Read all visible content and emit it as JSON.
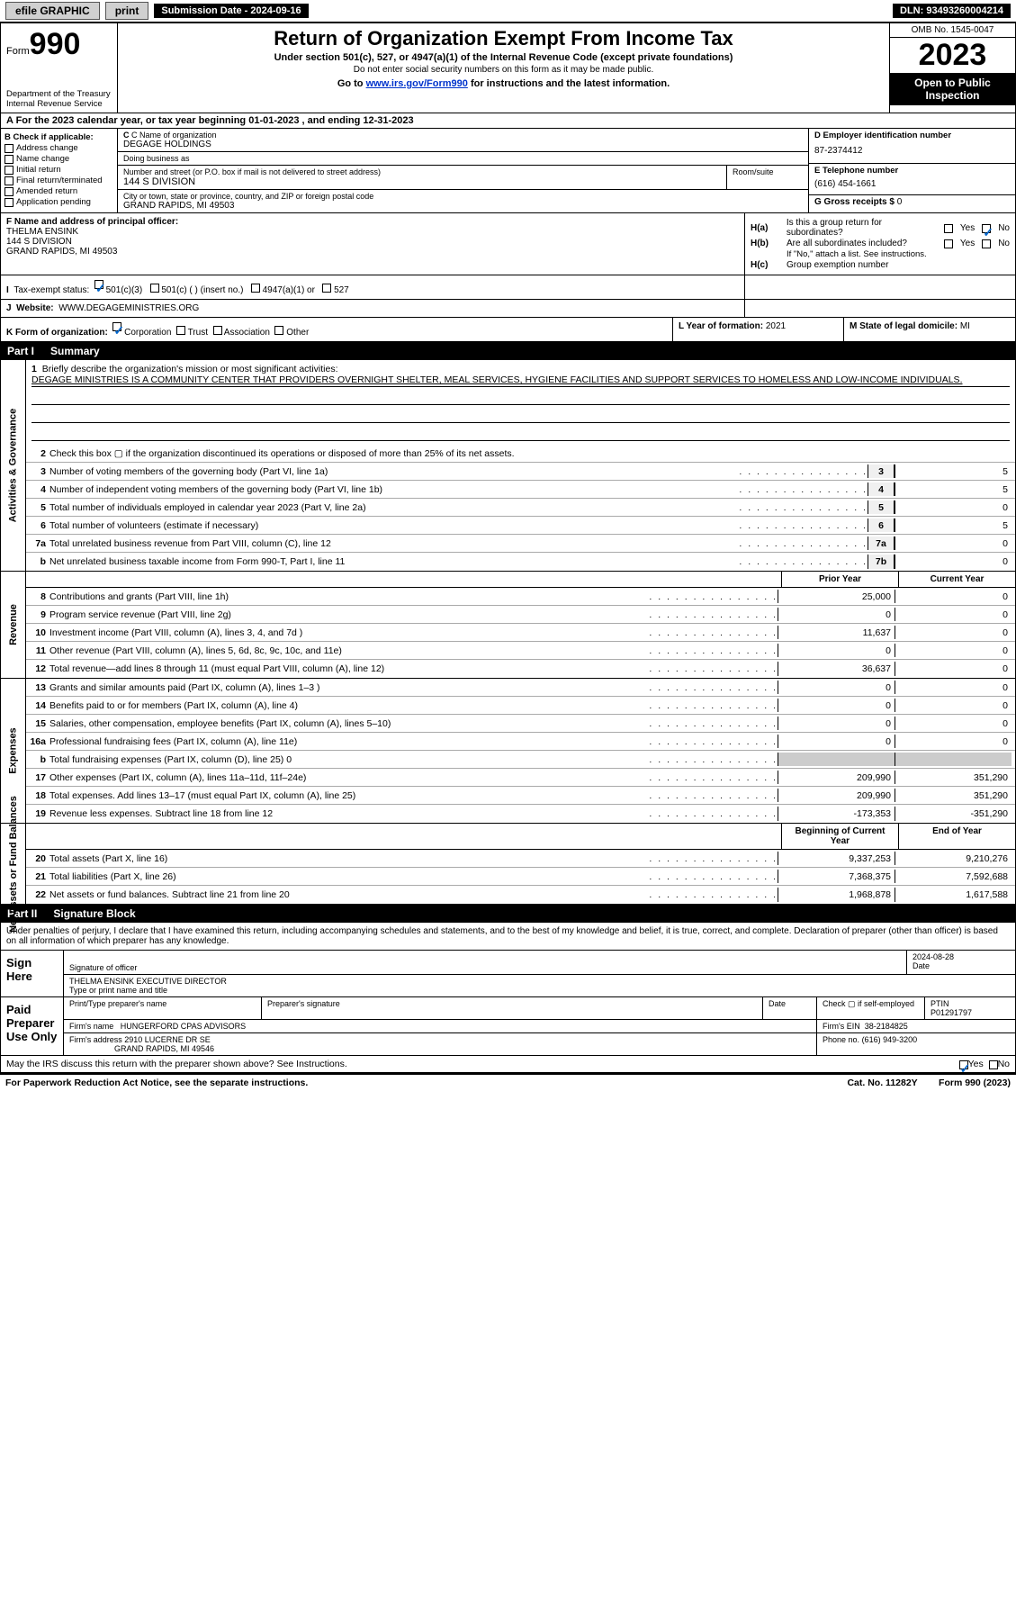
{
  "topbar": {
    "efile": "efile GRAPHIC",
    "print": "print",
    "submission_label": "Submission Date",
    "submission_date": "2024-09-16",
    "dln_label": "DLN:",
    "dln": "93493260004214"
  },
  "header": {
    "form_word": "Form",
    "form_num": "990",
    "dept": "Department of the Treasury Internal Revenue Service",
    "title": "Return of Organization Exempt From Income Tax",
    "sub": "Under section 501(c), 527, or 4947(a)(1) of the Internal Revenue Code (except private foundations)",
    "sub2": "Do not enter social security numbers on this form as it may be made public.",
    "goto_pre": "Go to ",
    "goto_link": "www.irs.gov/Form990",
    "goto_post": " for instructions and the latest information.",
    "omb": "OMB No. 1545-0047",
    "year": "2023",
    "open": "Open to Public Inspection"
  },
  "period": {
    "text_a": "A For the 2023 calendar year, or tax year beginning ",
    "begin": "01-01-2023",
    "text_b": " , and ending ",
    "end": "12-31-2023"
  },
  "colB": {
    "hdr": "B Check if applicable:",
    "items": [
      "Address change",
      "Name change",
      "Initial return",
      "Final return/terminated",
      "Amended return",
      "Application pending"
    ]
  },
  "colC": {
    "name_lbl": "C Name of organization",
    "name": "DEGAGE HOLDINGS",
    "dba_lbl": "Doing business as",
    "dba": "",
    "street_lbl": "Number and street (or P.O. box if mail is not delivered to street address)",
    "street": "144 S DIVISION",
    "room_lbl": "Room/suite",
    "city_lbl": "City or town, state or province, country, and ZIP or foreign postal code",
    "city": "GRAND RAPIDS, MI  49503"
  },
  "colD": {
    "ein_lbl": "D Employer identification number",
    "ein": "87-2374412",
    "phone_lbl": "E Telephone number",
    "phone": "(616) 454-1661",
    "gross_lbl": "G Gross receipts $",
    "gross": "0"
  },
  "rowF": {
    "lbl": "F Name and address of principal officer:",
    "name": "THELMA ENSINK",
    "street": "144 S DIVISION",
    "city": "GRAND RAPIDS, MI  49503"
  },
  "rowH": {
    "a": "Is this a group return for subordinates?",
    "a_yes": false,
    "a_no": true,
    "b": "Are all subordinates included?",
    "b_note": "If \"No,\" attach a list. See instructions.",
    "c": "Group exemption number"
  },
  "rowI": {
    "lbl": "Tax-exempt status:",
    "c3": "501(c)(3)",
    "c3_checked": true,
    "cins": "501(c) (  ) (insert no.)",
    "a1": "4947(a)(1) or",
    "s527": "527"
  },
  "rowJ": {
    "lbl": "Website:",
    "val": "WWW.DEGAGEMINISTRIES.ORG"
  },
  "rowK": {
    "lbl": "K Form of organization:",
    "corp": "Corporation",
    "corp_checked": true,
    "trust": "Trust",
    "assoc": "Association",
    "other": "Other",
    "L_lbl": "L Year of formation:",
    "L_val": "2021",
    "M_lbl": "M State of legal domicile:",
    "M_val": "MI"
  },
  "part1": {
    "num": "Part I",
    "title": "Summary"
  },
  "mission": {
    "lbl": "Briefly describe the organization's mission or most significant activities:",
    "text": "DEGAGE MINISTRIES IS A COMMUNITY CENTER THAT PROVIDERS OVERNIGHT SHELTER, MEAL SERVICES, HYGIENE FACILITIES AND SUPPORT SERVICES TO HOMELESS AND LOW-INCOME INDIVIDUALS."
  },
  "gov_lines": [
    {
      "n": "2",
      "desc": "Check this box ▢ if the organization discontinued its operations or disposed of more than 25% of its net assets."
    },
    {
      "n": "3",
      "desc": "Number of voting members of the governing body (Part VI, line 1a)",
      "box": "3",
      "val": "5"
    },
    {
      "n": "4",
      "desc": "Number of independent voting members of the governing body (Part VI, line 1b)",
      "box": "4",
      "val": "5"
    },
    {
      "n": "5",
      "desc": "Total number of individuals employed in calendar year 2023 (Part V, line 2a)",
      "box": "5",
      "val": "0"
    },
    {
      "n": "6",
      "desc": "Total number of volunteers (estimate if necessary)",
      "box": "6",
      "val": "5"
    },
    {
      "n": "7a",
      "desc": "Total unrelated business revenue from Part VIII, column (C), line 12",
      "box": "7a",
      "val": "0"
    },
    {
      "n": "b",
      "desc": "Net unrelated business taxable income from Form 990-T, Part I, line 11",
      "box": "7b",
      "val": "0"
    }
  ],
  "col_headers": {
    "prior": "Prior Year",
    "current": "Current Year",
    "beg": "Beginning of Current Year",
    "end": "End of Year"
  },
  "revenue": [
    {
      "n": "8",
      "desc": "Contributions and grants (Part VIII, line 1h)",
      "p": "25,000",
      "c": "0"
    },
    {
      "n": "9",
      "desc": "Program service revenue (Part VIII, line 2g)",
      "p": "0",
      "c": "0"
    },
    {
      "n": "10",
      "desc": "Investment income (Part VIII, column (A), lines 3, 4, and 7d )",
      "p": "11,637",
      "c": "0"
    },
    {
      "n": "11",
      "desc": "Other revenue (Part VIII, column (A), lines 5, 6d, 8c, 9c, 10c, and 11e)",
      "p": "0",
      "c": "0"
    },
    {
      "n": "12",
      "desc": "Total revenue—add lines 8 through 11 (must equal Part VIII, column (A), line 12)",
      "p": "36,637",
      "c": "0"
    }
  ],
  "expenses": [
    {
      "n": "13",
      "desc": "Grants and similar amounts paid (Part IX, column (A), lines 1–3 )",
      "p": "0",
      "c": "0"
    },
    {
      "n": "14",
      "desc": "Benefits paid to or for members (Part IX, column (A), line 4)",
      "p": "0",
      "c": "0"
    },
    {
      "n": "15",
      "desc": "Salaries, other compensation, employee benefits (Part IX, column (A), lines 5–10)",
      "p": "0",
      "c": "0"
    },
    {
      "n": "16a",
      "desc": "Professional fundraising fees (Part IX, column (A), line 11e)",
      "p": "0",
      "c": "0"
    },
    {
      "n": "b",
      "desc": "Total fundraising expenses (Part IX, column (D), line 25) 0",
      "p": "",
      "c": "",
      "gray": true
    },
    {
      "n": "17",
      "desc": "Other expenses (Part IX, column (A), lines 11a–11d, 11f–24e)",
      "p": "209,990",
      "c": "351,290"
    },
    {
      "n": "18",
      "desc": "Total expenses. Add lines 13–17 (must equal Part IX, column (A), line 25)",
      "p": "209,990",
      "c": "351,290"
    },
    {
      "n": "19",
      "desc": "Revenue less expenses. Subtract line 18 from line 12",
      "p": "-173,353",
      "c": "-351,290"
    }
  ],
  "netassets": [
    {
      "n": "20",
      "desc": "Total assets (Part X, line 16)",
      "p": "9,337,253",
      "c": "9,210,276"
    },
    {
      "n": "21",
      "desc": "Total liabilities (Part X, line 26)",
      "p": "7,368,375",
      "c": "7,592,688"
    },
    {
      "n": "22",
      "desc": "Net assets or fund balances. Subtract line 21 from line 20",
      "p": "1,968,878",
      "c": "1,617,588"
    }
  ],
  "side_labels": {
    "gov": "Activities & Governance",
    "rev": "Revenue",
    "exp": "Expenses",
    "net": "Net Assets or Fund Balances"
  },
  "part2": {
    "num": "Part II",
    "title": "Signature Block"
  },
  "sig": {
    "intro": "Under penalties of perjury, I declare that I have examined this return, including accompanying schedules and statements, and to the best of my knowledge and belief, it is true, correct, and complete. Declaration of preparer (other than officer) is based on all information of which preparer has any knowledge.",
    "sign_here": "Sign Here",
    "sig_officer_lbl": "Signature of officer",
    "date_lbl": "Date",
    "sig_date": "2024-08-28",
    "officer_name": "THELMA ENSINK  EXECUTIVE DIRECTOR",
    "type_lbl": "Type or print name and title",
    "paid": "Paid Preparer Use Only",
    "prep_name_lbl": "Print/Type preparer's name",
    "prep_sig_lbl": "Preparer's signature",
    "prep_date_lbl": "Date",
    "self_lbl": "Check ▢ if self-employed",
    "ptin_lbl": "PTIN",
    "ptin": "P01291797",
    "firm_name_lbl": "Firm's name",
    "firm_name": "HUNGERFORD CPAS ADVISORS",
    "firm_ein_lbl": "Firm's EIN",
    "firm_ein": "38-2184825",
    "firm_addr_lbl": "Firm's address",
    "firm_addr1": "2910 LUCERNE DR SE",
    "firm_addr2": "GRAND RAPIDS, MI  49546",
    "firm_phone_lbl": "Phone no.",
    "firm_phone": "(616) 949-3200"
  },
  "discuss": {
    "text": "May the IRS discuss this return with the preparer shown above? See Instructions.",
    "yes_checked": true
  },
  "footer": {
    "left": "For Paperwork Reduction Act Notice, see the separate instructions.",
    "mid": "Cat. No. 11282Y",
    "right": "Form 990 (2023)"
  }
}
